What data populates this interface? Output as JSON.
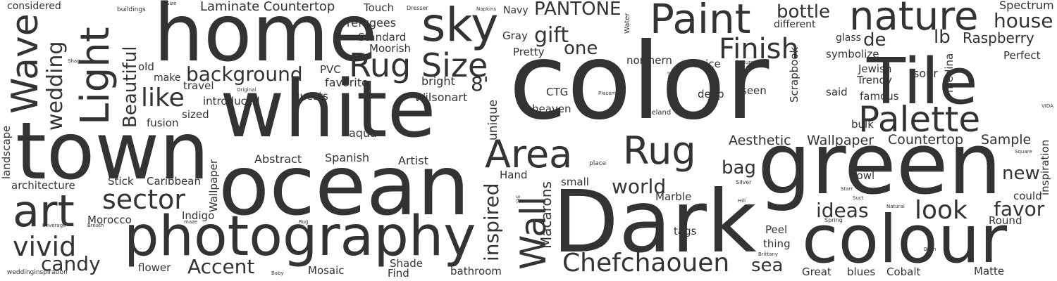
{
  "text_color": "#333333",
  "background": "#ffffff",
  "words": {
    "w_color": "color",
    "w_ocean": "ocean",
    "w_white": "white",
    "w_home": "home",
    "w_green": "green",
    "w_dark": "Dark",
    "w_town": "town",
    "w_colour": "colour",
    "w_photography": "photography",
    "w_tile": "Tile",
    "w_nature": "nature",
    "w_sky": "sky",
    "w_paint": "Paint",
    "w_area": "Area",
    "w_rug": "Rug",
    "w_wall": "Wall",
    "w_art": "art",
    "w_palette": "Palette",
    "w_light": "Light",
    "w_wave": "Wave",
    "w_rugsize": "Rug Size",
    "w_chefchaouen": "Chefchaouen",
    "w_sector": "sector",
    "w_vivid": "vivid",
    "w_finish": "Finish",
    "w_wedding": "wedding",
    "w_look": "look",
    "w_gift": "gift",
    "w_like": "like",
    "w_background": "background",
    "w_accent": "Accent",
    "w_candy": "candy",
    "w_inspired": "inspired",
    "w_world": "world",
    "w_beautiful": "Beautiful",
    "w_house": "house",
    "w_bottle": "bottle",
    "w_pantone": "PANTONE",
    "w_macarons": "Macarons",
    "w_ideas": "ideas",
    "w_favor": "favor",
    "w_one": "one",
    "w_sea": "sea",
    "w_bag": "bag",
    "w_new": "new",
    "w_lb": "lb",
    "w_de": "de",
    "w_8": "8'",
    "w_raspberry": "Raspberry",
    "w_aesthetic": "Aesthetic",
    "w_wallpaper2": "Wallpaper",
    "w_countertop": "Countertop",
    "w_sample": "Sample",
    "w_spectrum": "Spectrum",
    "w_laminate": "Laminate Countertop",
    "w_considered": "considered",
    "w_refugees": "refugees",
    "w_touch": "Touch",
    "w_navy": "Navy",
    "w_standard": "Standard",
    "w_moorish": "Moorish",
    "w_gray": "Gray",
    "w_pretty": "Pretty",
    "w_northern": "northern",
    "w_voice": "voice",
    "w_different": "different",
    "w_glass": "glass",
    "w_symbolize": "symbolize",
    "w_perfect": "Perfect",
    "w_jewish": "Jewish",
    "w_sour": "sour",
    "w_trendy": "Trendy",
    "w_famous": "famous",
    "w_said": "said",
    "w_seen": "seen",
    "w_deep": "deep",
    "w_medina": "medina",
    "w_inspiration": "inspiration",
    "w_scrapbook": "Scrapbook",
    "w_pvc": "PVC",
    "w_bright": "bright",
    "w_favorite": "favorite",
    "w_wilsonart": "Wilsonart",
    "w_ctg": "CTG",
    "w_heaven": "heaven",
    "w_unique": "unique",
    "w_iceland": "Iceland",
    "w_guests": "guests",
    "w_introduced": "introduced",
    "w_travel": "travel",
    "w_make": "make",
    "w_old": "old",
    "w_sized": "sized",
    "w_fusion": "fusion",
    "w_aqua": "aqua",
    "w_abstract": "Abstract",
    "w_spanish": "Spanish",
    "w_artist": "Artist",
    "w_wallpaper": "Wallpaper",
    "w_caribbean": "Caribbean",
    "w_stick": "Stick",
    "w_architecture": "architecture",
    "w_landscape": "landscape",
    "w_indigo": "Indigo",
    "w_morocco": "Morocco",
    "w_hand": "Hand",
    "w_small": "small",
    "w_marble": "Marble",
    "w_tags": "tags",
    "w_peel": "Peel",
    "w_thing": "thing",
    "w_bulk": "bulk",
    "w_bowl": "bowl",
    "w_could": "could",
    "w_round": "Round",
    "w_matte": "Matte",
    "w_cobalt": "Cobalt",
    "w_blues": "blues",
    "w_great": "Great",
    "w_flower": "flower",
    "w_mosaic": "Mosaic",
    "w_shade": "Shade",
    "w_find": "Find",
    "w_bathroom": "bathroom",
    "w_weddinginspiration": "weddinginspiration",
    "w_buildings": "buildings",
    "w_size": "Size",
    "w_dresser": "Dresser",
    "w_napkins": "Napkins",
    "w_water": "Water",
    "w_shag": "Shag",
    "w_original": "Original",
    "w_cocktail": "Cocktail",
    "w_placemat": "Placemat",
    "w_place": "place",
    "w_features": "features",
    "w_vida": "VIDA",
    "w_square": "Square",
    "w_silver": "Silver",
    "w_starr": "Starr",
    "w_suct": "Suct",
    "w_hill": "Hill",
    "w_natural": "Natural",
    "w_spring": "Spring",
    "w_bush": "Bush",
    "w_brittany": "Brittany",
    "w_beverage": "Beverage",
    "w_breath": "Breath",
    "w_maze": "maze",
    "w_rug_small": "Rug",
    "w_baby": "Baby",
    "w_set": "Set",
    "w_lc": "L'C"
  }
}
